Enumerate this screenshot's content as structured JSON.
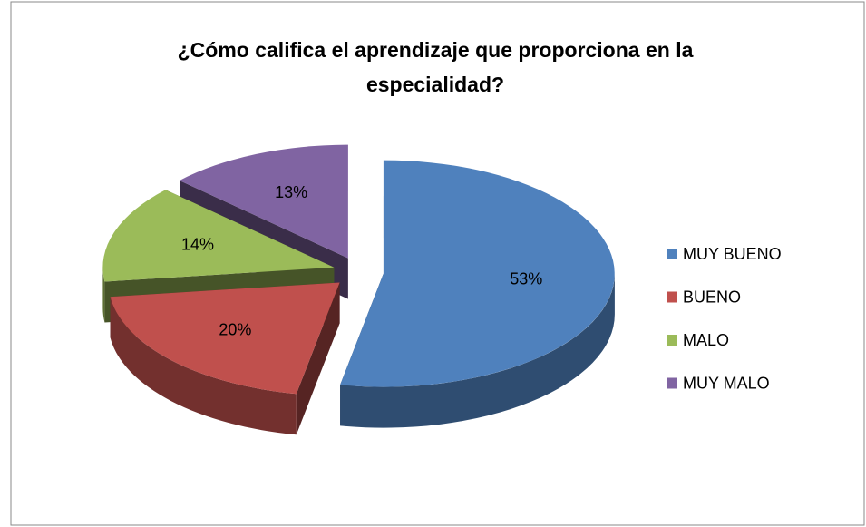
{
  "chart_data": {
    "type": "pie",
    "title": "¿Cómo califica el aprendizaje que proporciona en la especialidad?",
    "categories": [
      "MUY BUENO",
      "BUENO",
      "MALO",
      "MUY MALO"
    ],
    "values": [
      53,
      20,
      14,
      13
    ],
    "value_labels": [
      "53%",
      "20%",
      "14%",
      "13%"
    ],
    "colors": [
      "#4f81bd",
      "#c0504d",
      "#9bbb59",
      "#8064a2"
    ],
    "legend": "right"
  }
}
